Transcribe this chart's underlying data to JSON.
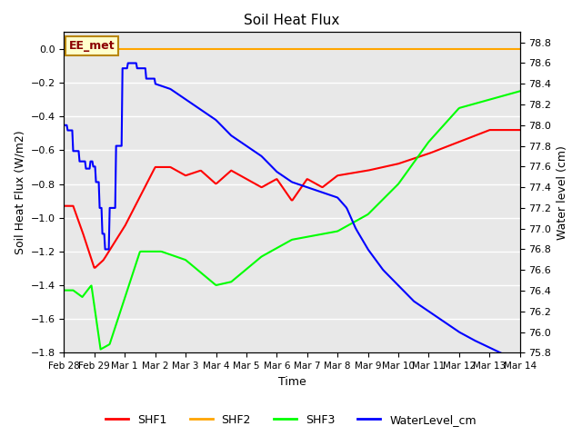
{
  "title": "Soil Heat Flux",
  "xlabel": "Time",
  "ylabel_left": "Soil Heat Flux (W/m2)",
  "ylabel_right": "Water level (cm)",
  "ylim_left": [
    -1.8,
    0.1
  ],
  "ylim_right": [
    75.8,
    78.9
  ],
  "yticks_left": [
    0.0,
    -0.2,
    -0.4,
    -0.6,
    -0.8,
    -1.0,
    -1.2,
    -1.4,
    -1.6,
    -1.8
  ],
  "yticks_right": [
    75.8,
    76.0,
    76.2,
    76.4,
    76.6,
    76.8,
    77.0,
    77.2,
    77.4,
    77.6,
    77.8,
    78.0,
    78.2,
    78.4,
    78.6,
    78.8
  ],
  "xtick_labels": [
    "Feb 28",
    "Feb 29",
    "Mar 1",
    "Mar 2",
    "Mar 3",
    "Mar 4",
    "Mar 5",
    "Mar 6",
    "Mar 7",
    "Mar 8",
    "Mar 9",
    "Mar 10",
    "Mar 11",
    "Mar 12",
    "Mar 13",
    "Mar 14"
  ],
  "annotation_text": "EE_met",
  "colors": {
    "SHF1": "red",
    "SHF2": "#FFA500",
    "SHF3": "lime",
    "WaterLevel_cm": "blue",
    "annotation_bg": "#FFFFCC",
    "annotation_border": "#B8860B",
    "annotation_text": "#8B0000"
  },
  "background_color": "#E8E8E8",
  "grid_color": "white"
}
